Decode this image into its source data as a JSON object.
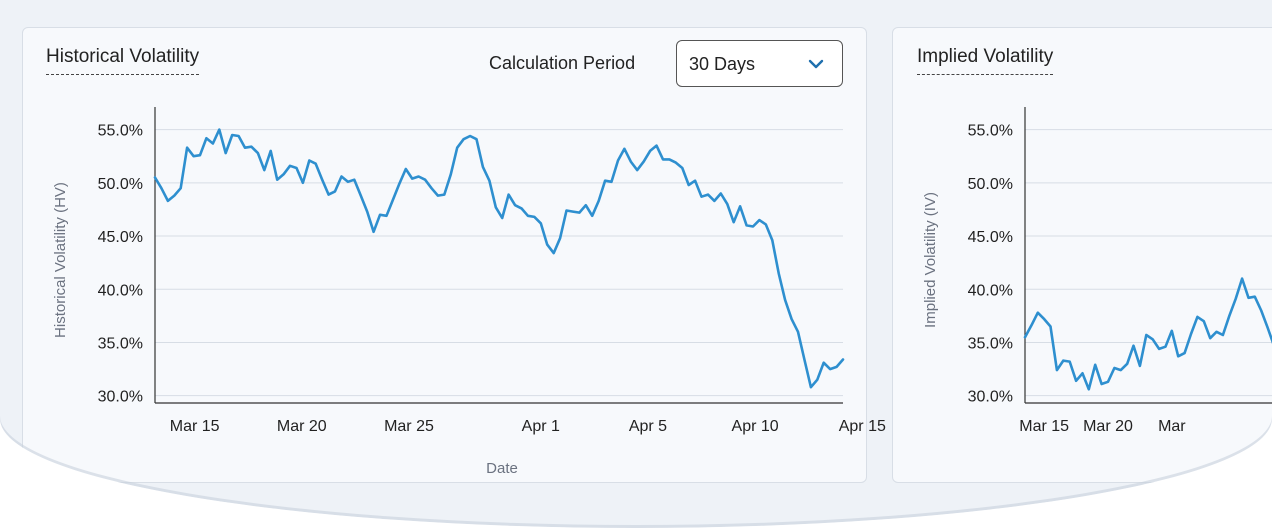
{
  "colors": {
    "line": "#2e8fcf",
    "grid": "#d7dde5",
    "axis": "#333333"
  },
  "hv_panel": {
    "title": "Historical Volatility",
    "period_label": "Calculation Period",
    "period_value": "30 Days",
    "period_icon": "chevron-down-icon"
  },
  "iv_panel": {
    "title": "Implied Volatility"
  },
  "chart_data": [
    {
      "type": "line",
      "title": "Historical Volatility",
      "xlabel": "Date",
      "ylabel": "Historical Volatility (HV)",
      "x_range": [
        "Mar 13",
        "Apr 15"
      ],
      "ylim": [
        29.5,
        56
      ],
      "y_ticks": [
        {
          "value": 30,
          "label": "30.0%"
        },
        {
          "value": 35,
          "label": "35.0%"
        },
        {
          "value": 40,
          "label": "40.0%"
        },
        {
          "value": 45,
          "label": "45.0%"
        },
        {
          "value": 50,
          "label": "50.0%"
        },
        {
          "value": 55,
          "label": "55.0%"
        }
      ],
      "x_ticks": [
        {
          "value": 1.85,
          "label": "Mar 15"
        },
        {
          "value": 6.85,
          "label": "Mar 20"
        },
        {
          "value": 11.85,
          "label": "Mar 25"
        },
        {
          "value": 18.0,
          "label": "Apr 1"
        },
        {
          "value": 23.0,
          "label": "Apr 5"
        },
        {
          "value": 28.0,
          "label": "Apr 10"
        },
        {
          "value": 33.0,
          "label": "Apr 15"
        }
      ],
      "grid": true,
      "series": [
        {
          "points": [
            [
              0,
              50.5
            ],
            [
              0.3,
              49.5
            ],
            [
              0.6,
              48.3
            ],
            [
              0.9,
              48.8
            ],
            [
              1.2,
              49.5
            ],
            [
              1.5,
              53.3
            ],
            [
              1.8,
              52.5
            ],
            [
              2.1,
              52.6
            ],
            [
              2.4,
              54.2
            ],
            [
              2.7,
              53.7
            ],
            [
              3.0,
              55.0
            ],
            [
              3.3,
              52.8
            ],
            [
              3.6,
              54.5
            ],
            [
              3.9,
              54.4
            ],
            [
              4.2,
              53.3
            ],
            [
              4.5,
              53.4
            ],
            [
              4.8,
              52.8
            ],
            [
              5.1,
              51.2
            ],
            [
              5.4,
              53.0
            ],
            [
              5.7,
              50.3
            ],
            [
              6.0,
              50.8
            ],
            [
              6.3,
              51.6
            ],
            [
              6.6,
              51.4
            ],
            [
              6.9,
              50.0
            ],
            [
              7.2,
              52.1
            ],
            [
              7.5,
              51.8
            ],
            [
              7.8,
              50.3
            ],
            [
              8.1,
              48.9
            ],
            [
              8.4,
              49.2
            ],
            [
              8.7,
              50.6
            ],
            [
              9.0,
              50.1
            ],
            [
              9.3,
              50.3
            ],
            [
              9.6,
              48.8
            ],
            [
              9.9,
              47.3
            ],
            [
              10.2,
              45.4
            ],
            [
              10.5,
              47.0
            ],
            [
              10.8,
              46.9
            ],
            [
              11.1,
              48.4
            ],
            [
              11.4,
              49.9
            ],
            [
              11.7,
              51.3
            ],
            [
              12.0,
              50.4
            ],
            [
              12.3,
              50.6
            ],
            [
              12.6,
              50.3
            ],
            [
              12.9,
              49.5
            ],
            [
              13.2,
              48.8
            ],
            [
              13.5,
              48.9
            ],
            [
              13.8,
              50.8
            ],
            [
              14.1,
              53.3
            ],
            [
              14.4,
              54.1
            ],
            [
              14.7,
              54.4
            ],
            [
              15.0,
              54.1
            ],
            [
              15.3,
              51.5
            ],
            [
              15.6,
              50.2
            ],
            [
              15.9,
              47.7
            ],
            [
              16.2,
              46.7
            ],
            [
              16.5,
              48.9
            ],
            [
              16.8,
              47.9
            ],
            [
              17.1,
              47.6
            ],
            [
              17.4,
              46.9
            ],
            [
              17.7,
              46.8
            ],
            [
              18.0,
              46.2
            ],
            [
              18.3,
              44.2
            ],
            [
              18.6,
              43.4
            ],
            [
              18.9,
              44.8
            ],
            [
              19.2,
              47.4
            ],
            [
              19.5,
              47.3
            ],
            [
              19.8,
              47.2
            ],
            [
              20.1,
              47.9
            ],
            [
              20.4,
              46.9
            ],
            [
              20.7,
              48.3
            ],
            [
              21.0,
              50.2
            ],
            [
              21.3,
              50.1
            ],
            [
              21.6,
              52.1
            ],
            [
              21.9,
              53.2
            ],
            [
              22.2,
              52.0
            ],
            [
              22.5,
              51.2
            ],
            [
              22.8,
              52.0
            ],
            [
              23.1,
              53.0
            ],
            [
              23.4,
              53.5
            ],
            [
              23.7,
              52.2
            ],
            [
              24.0,
              52.2
            ],
            [
              24.3,
              51.9
            ],
            [
              24.6,
              51.4
            ],
            [
              24.9,
              49.8
            ],
            [
              25.2,
              50.2
            ],
            [
              25.5,
              48.7
            ],
            [
              25.8,
              48.9
            ],
            [
              26.1,
              48.3
            ],
            [
              26.4,
              49.0
            ],
            [
              26.7,
              48.0
            ],
            [
              27.0,
              46.3
            ],
            [
              27.3,
              47.8
            ],
            [
              27.6,
              46.0
            ],
            [
              27.9,
              45.9
            ],
            [
              28.2,
              46.5
            ],
            [
              28.5,
              46.1
            ],
            [
              28.8,
              44.6
            ],
            [
              29.1,
              41.5
            ],
            [
              29.4,
              39.0
            ],
            [
              29.7,
              37.2
            ],
            [
              30.0,
              36.0
            ],
            [
              30.3,
              33.4
            ],
            [
              30.6,
              30.8
            ],
            [
              30.9,
              31.5
            ],
            [
              31.2,
              33.1
            ],
            [
              31.5,
              32.5
            ],
            [
              31.8,
              32.7
            ],
            [
              32.1,
              33.4
            ]
          ]
        }
      ]
    },
    {
      "type": "line",
      "title": "Implied Volatility",
      "ylabel": "Implied Volatility (IV)",
      "ylim": [
        29.5,
        56
      ],
      "y_ticks": [
        {
          "value": 30,
          "label": "30.0%"
        },
        {
          "value": 35,
          "label": "35.0%"
        },
        {
          "value": 40,
          "label": "40.0%"
        },
        {
          "value": 45,
          "label": "45.0%"
        },
        {
          "value": 50,
          "label": "50.0%"
        },
        {
          "value": 55,
          "label": "55.0%"
        }
      ],
      "x_ticks": [
        {
          "value": 1.5,
          "label": "Mar 15"
        },
        {
          "value": 6.5,
          "label": "Mar 20"
        },
        {
          "value": 11.5,
          "label": "Mar"
        }
      ],
      "grid": true,
      "series": [
        {
          "points": [
            [
              0,
              35.5
            ],
            [
              0.5,
              36.6
            ],
            [
              1.0,
              37.8
            ],
            [
              1.5,
              37.2
            ],
            [
              2.0,
              36.5
            ],
            [
              2.5,
              32.4
            ],
            [
              3.0,
              33.3
            ],
            [
              3.5,
              33.2
            ],
            [
              4.0,
              31.4
            ],
            [
              4.5,
              32.1
            ],
            [
              5.0,
              30.6
            ],
            [
              5.5,
              32.9
            ],
            [
              6.0,
              31.1
            ],
            [
              6.5,
              31.3
            ],
            [
              7.0,
              32.6
            ],
            [
              7.5,
              32.4
            ],
            [
              8.0,
              33.0
            ],
            [
              8.5,
              34.7
            ],
            [
              9.0,
              32.8
            ],
            [
              9.5,
              35.7
            ],
            [
              10.0,
              35.3
            ],
            [
              10.5,
              34.4
            ],
            [
              11.0,
              34.6
            ],
            [
              11.5,
              36.1
            ],
            [
              12.0,
              33.7
            ],
            [
              12.5,
              34.0
            ],
            [
              13.0,
              35.8
            ],
            [
              13.5,
              37.4
            ],
            [
              14.0,
              37.0
            ],
            [
              14.5,
              35.4
            ],
            [
              15.0,
              36.0
            ],
            [
              15.5,
              35.7
            ],
            [
              16.0,
              37.5
            ],
            [
              16.5,
              39.1
            ],
            [
              17.0,
              41.0
            ],
            [
              17.5,
              39.2
            ],
            [
              18.0,
              39.3
            ],
            [
              18.5,
              38.0
            ],
            [
              19.0,
              36.4
            ],
            [
              19.5,
              34.7
            ]
          ]
        }
      ]
    }
  ]
}
